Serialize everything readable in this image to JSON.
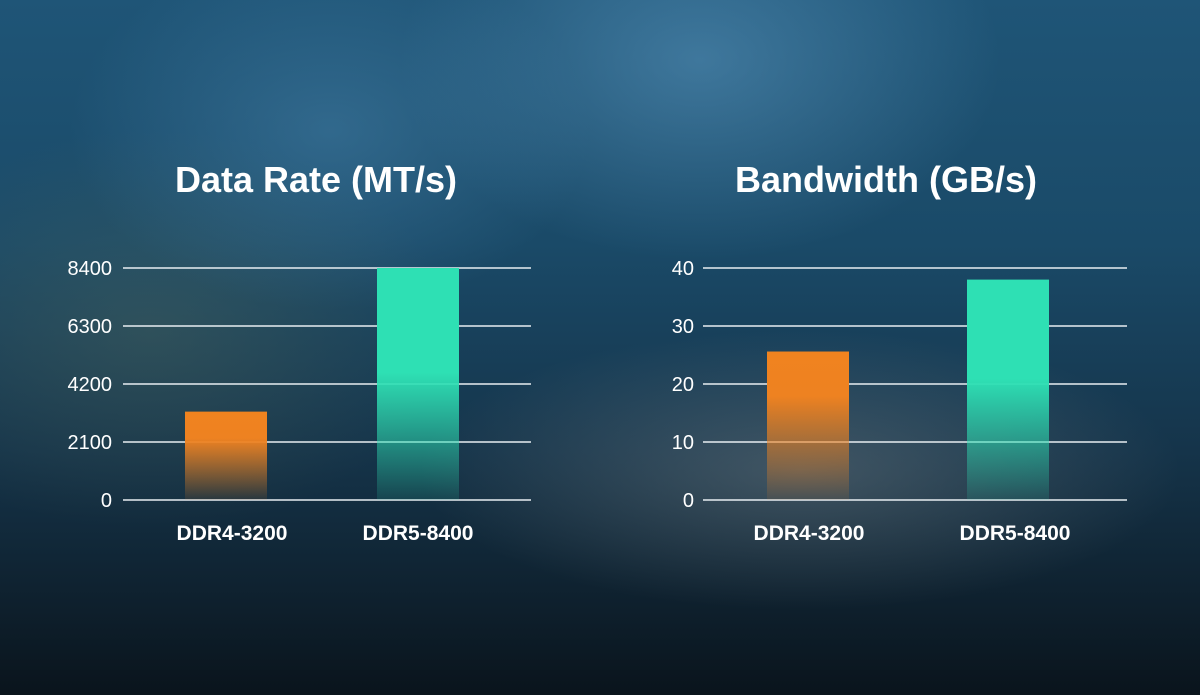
{
  "chart_data": [
    {
      "type": "bar",
      "title": "Data Rate (MT/s)",
      "categories": [
        "DDR4-3200",
        "DDR5-8400"
      ],
      "values": [
        3200,
        8400
      ],
      "yticks": [
        "0",
        "2100",
        "4200",
        "6300",
        "8400"
      ],
      "ylim": [
        0,
        8400
      ],
      "grid": true,
      "colors": [
        "#f0831f",
        "#2ee0b4"
      ]
    },
    {
      "type": "bar",
      "title": "Bandwidth (GB/s)",
      "categories": [
        "DDR4-3200",
        "DDR5-8400"
      ],
      "values": [
        25.6,
        38
      ],
      "yticks": [
        "0",
        "10",
        "20",
        "30",
        "40"
      ],
      "ylim": [
        0,
        40
      ],
      "grid": true,
      "colors": [
        "#f0831f",
        "#2ee0b4"
      ]
    }
  ]
}
